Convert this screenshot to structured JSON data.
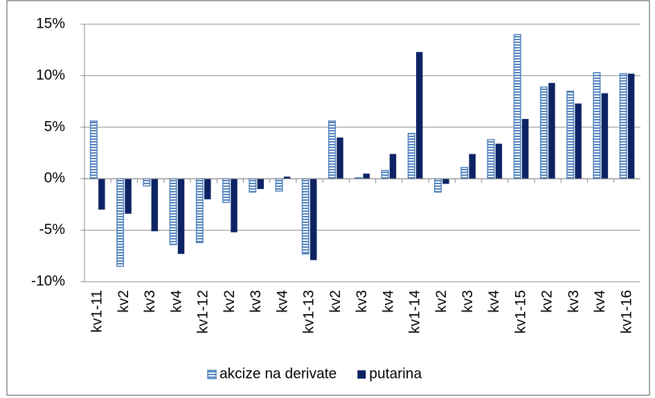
{
  "chart_data": {
    "type": "bar",
    "categories": [
      "kv1-11",
      "kv2",
      "kv3",
      "kv4",
      "kv1-12",
      "kv2",
      "kv3",
      "kv4",
      "kv1-13",
      "kv2",
      "kv3",
      "kv4",
      "kv1-14",
      "kv2",
      "kv3",
      "kv4",
      "kv1-15",
      "kv2",
      "kv3",
      "kv4",
      "kv1-16"
    ],
    "series": [
      {
        "name": "akcize na derivate",
        "color": "#4f81bd",
        "pattern": "horizontal-stripes",
        "values": [
          5.6,
          -8.5,
          -0.7,
          -6.4,
          -6.2,
          -2.3,
          -1.3,
          -1.2,
          -7.3,
          5.6,
          0.1,
          0.8,
          4.4,
          -1.3,
          1.1,
          3.8,
          14.0,
          8.9,
          8.5,
          10.3,
          10.2
        ]
      },
      {
        "name": "putarina",
        "color": "#0d2364",
        "values": [
          -3.0,
          -3.4,
          -5.1,
          -7.3,
          -2.0,
          -5.2,
          -1.0,
          0.2,
          -7.9,
          4.0,
          0.5,
          2.4,
          12.3,
          -0.5,
          2.4,
          3.4,
          5.8,
          9.3,
          7.3,
          8.3,
          10.2
        ]
      }
    ],
    "ylim": [
      -10,
      15
    ],
    "yticks": [
      {
        "value": -10,
        "label": "-10%"
      },
      {
        "value": -5,
        "label": "-5%"
      },
      {
        "value": 0,
        "label": "0%"
      },
      {
        "value": 5,
        "label": "5%"
      },
      {
        "value": 10,
        "label": "10%"
      },
      {
        "value": 15,
        "label": "15%"
      }
    ],
    "grid": true,
    "legend": "bottom"
  }
}
